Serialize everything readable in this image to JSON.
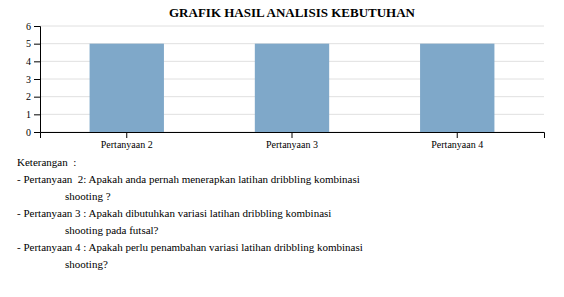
{
  "chart_data": {
    "type": "bar",
    "title": "GRAFIK HASIL ANALISIS KEBUTUHAN",
    "categories": [
      "Pertanyaan 2",
      "Pertanyaan 3",
      "Pertanyaan 4"
    ],
    "values": [
      5,
      5,
      5
    ],
    "color": "#7fa8c9",
    "ylim": [
      0,
      6
    ],
    "yticks": [
      0,
      1,
      2,
      3,
      4,
      5,
      6
    ],
    "grid": true,
    "annotations": [
      "Keterangan  :",
      "- Pertanyaan  2: Apakah anda pernah menerapkan latihan dribbling kombinasi",
      "shooting ?",
      "- Pertanyaan 3 : Apakah dibutuhkan variasi latihan dribbling kombinasi",
      "shooting pada futsal?",
      "- Pertanyaan 4 : Apakah perlu penambahan variasi latihan dribbling kombinasi",
      "shooting?"
    ]
  }
}
